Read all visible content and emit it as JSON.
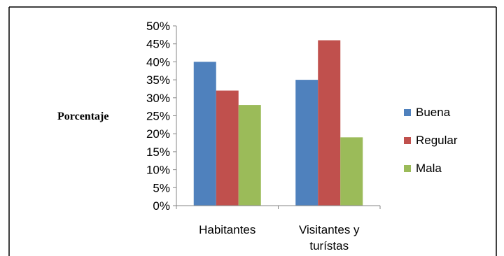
{
  "chart_data": {
    "type": "bar",
    "title": "",
    "xlabel": "",
    "ylabel": "Porcentaje",
    "categories": [
      [
        "Habitantes"
      ],
      [
        "Visitantes y",
        "turístas"
      ]
    ],
    "series": [
      {
        "name": "Buena",
        "color": "#4F81BD",
        "values": [
          40,
          35
        ]
      },
      {
        "name": "Regular",
        "color": "#C0504D",
        "values": [
          32,
          46
        ]
      },
      {
        "name": "Mala",
        "color": "#9BBB59",
        "values": [
          28,
          19
        ]
      }
    ],
    "ylim": [
      0,
      50
    ],
    "y_ticks": [
      "0%",
      "5%",
      "10%",
      "15%",
      "20%",
      "25%",
      "30%",
      "35%",
      "40%",
      "45%",
      "50%"
    ],
    "y_tick_values": [
      0,
      5,
      10,
      15,
      20,
      25,
      30,
      35,
      40,
      45,
      50
    ],
    "grid": false,
    "legend_position": "right",
    "frame_color": "#000000",
    "axis_color": "#868686"
  }
}
